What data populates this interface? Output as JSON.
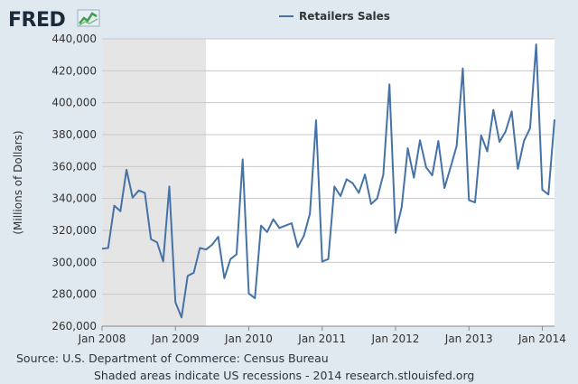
{
  "branding": {
    "logo_text": "FRED"
  },
  "footer": {
    "source_line": "Source: U.S. Department of Commerce: Census Bureau",
    "note_line": "Shaded areas indicate US recessions - 2014 research.stlouisfed.org"
  },
  "colors": {
    "background": "#e1e9f0",
    "plot_background": "#ffffff",
    "recession_shade": "#e5e5e5",
    "series_line": "#4572a7",
    "grid": "#c8c8c8"
  },
  "chart_data": {
    "type": "line",
    "title": "",
    "xlabel": "",
    "ylabel": "(Millions of Dollars)",
    "ylim": [
      260000,
      440000
    ],
    "xlim": [
      "2008-01",
      "2014-03"
    ],
    "grid": true,
    "legend_placement": "top-center",
    "y_ticks": [
      "260,000",
      "280,000",
      "300,000",
      "320,000",
      "340,000",
      "360,000",
      "380,000",
      "400,000",
      "420,000",
      "440,000"
    ],
    "x_ticks": [
      "Jan 2008",
      "Jan 2009",
      "Jan 2010",
      "Jan 2011",
      "Jan 2012",
      "Jan 2013",
      "Jan 2014"
    ],
    "recessions": [
      {
        "start": "2008-01",
        "end": "2009-06"
      }
    ],
    "series": [
      {
        "name": "Retailers Sales",
        "color": "#4572a7",
        "x": [
          "2008-01",
          "2008-02",
          "2008-03",
          "2008-04",
          "2008-05",
          "2008-06",
          "2008-07",
          "2008-08",
          "2008-09",
          "2008-10",
          "2008-11",
          "2008-12",
          "2009-01",
          "2009-02",
          "2009-03",
          "2009-04",
          "2009-05",
          "2009-06",
          "2009-07",
          "2009-08",
          "2009-09",
          "2009-10",
          "2009-11",
          "2009-12",
          "2010-01",
          "2010-02",
          "2010-03",
          "2010-04",
          "2010-05",
          "2010-06",
          "2010-07",
          "2010-08",
          "2010-09",
          "2010-10",
          "2010-11",
          "2010-12",
          "2011-01",
          "2011-02",
          "2011-03",
          "2011-04",
          "2011-05",
          "2011-06",
          "2011-07",
          "2011-08",
          "2011-09",
          "2011-10",
          "2011-11",
          "2011-12",
          "2012-01",
          "2012-02",
          "2012-03",
          "2012-04",
          "2012-05",
          "2012-06",
          "2012-07",
          "2012-08",
          "2012-09",
          "2012-10",
          "2012-11",
          "2012-12",
          "2013-01",
          "2013-02",
          "2013-03",
          "2013-04",
          "2013-05",
          "2013-06",
          "2013-07",
          "2013-08",
          "2013-09",
          "2013-10",
          "2013-11",
          "2013-12",
          "2014-01",
          "2014-02",
          "2014-03"
        ],
        "values": [
          308500,
          309000,
          335500,
          332000,
          358000,
          340500,
          345000,
          343500,
          314500,
          312500,
          300500,
          347500,
          275000,
          265500,
          291500,
          293500,
          309000,
          308000,
          311000,
          316000,
          290000,
          302000,
          305000,
          364500,
          280500,
          277500,
          323000,
          319000,
          327000,
          321500,
          323000,
          324500,
          309500,
          316500,
          330500,
          389000,
          300500,
          302000,
          347500,
          341500,
          352000,
          349500,
          343500,
          355000,
          336500,
          340000,
          355000,
          411500,
          318500,
          334500,
          371500,
          353000,
          376500,
          359500,
          354500,
          376000,
          346500,
          359500,
          373000,
          421500,
          339000,
          337500,
          379500,
          369500,
          395500,
          375500,
          382000,
          394500,
          358500,
          376000,
          384000,
          436500,
          345500,
          342500,
          389500
        ]
      }
    ]
  }
}
